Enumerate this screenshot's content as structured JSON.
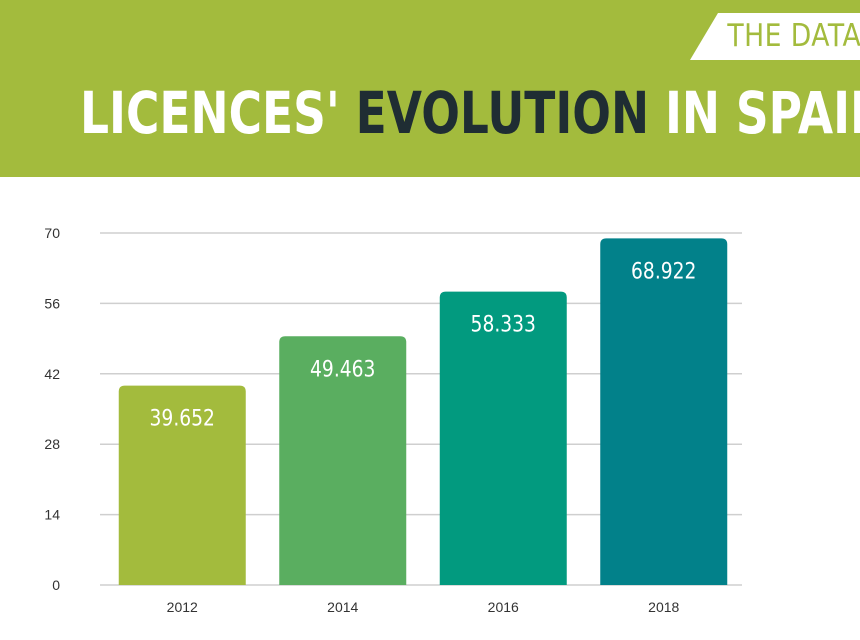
{
  "header": {
    "badge": "THE DATA",
    "title_part1": "LICENCES'",
    "title_part2": "EVOLUTION",
    "title_part3": "IN SPAIN"
  },
  "colors": {
    "header_bg": "#a3bb3d",
    "title_accent": "#1f2d33",
    "bars": [
      "#a3bb3d",
      "#5aae60",
      "#029a7f",
      "#02818a"
    ]
  },
  "chart_data": {
    "type": "bar",
    "title": "LICENCES' EVOLUTION IN SPAIN",
    "categories": [
      "2012",
      "2014",
      "2016",
      "2018"
    ],
    "values": [
      39.652,
      49.463,
      58.333,
      68.922
    ],
    "value_labels": [
      "39.652",
      "49.463",
      "58.333",
      "68.922"
    ],
    "yticks": [
      0,
      14,
      28,
      42,
      56,
      70
    ],
    "ylim": [
      0,
      70
    ],
    "xlabel": "",
    "ylabel": "",
    "grid": true
  }
}
